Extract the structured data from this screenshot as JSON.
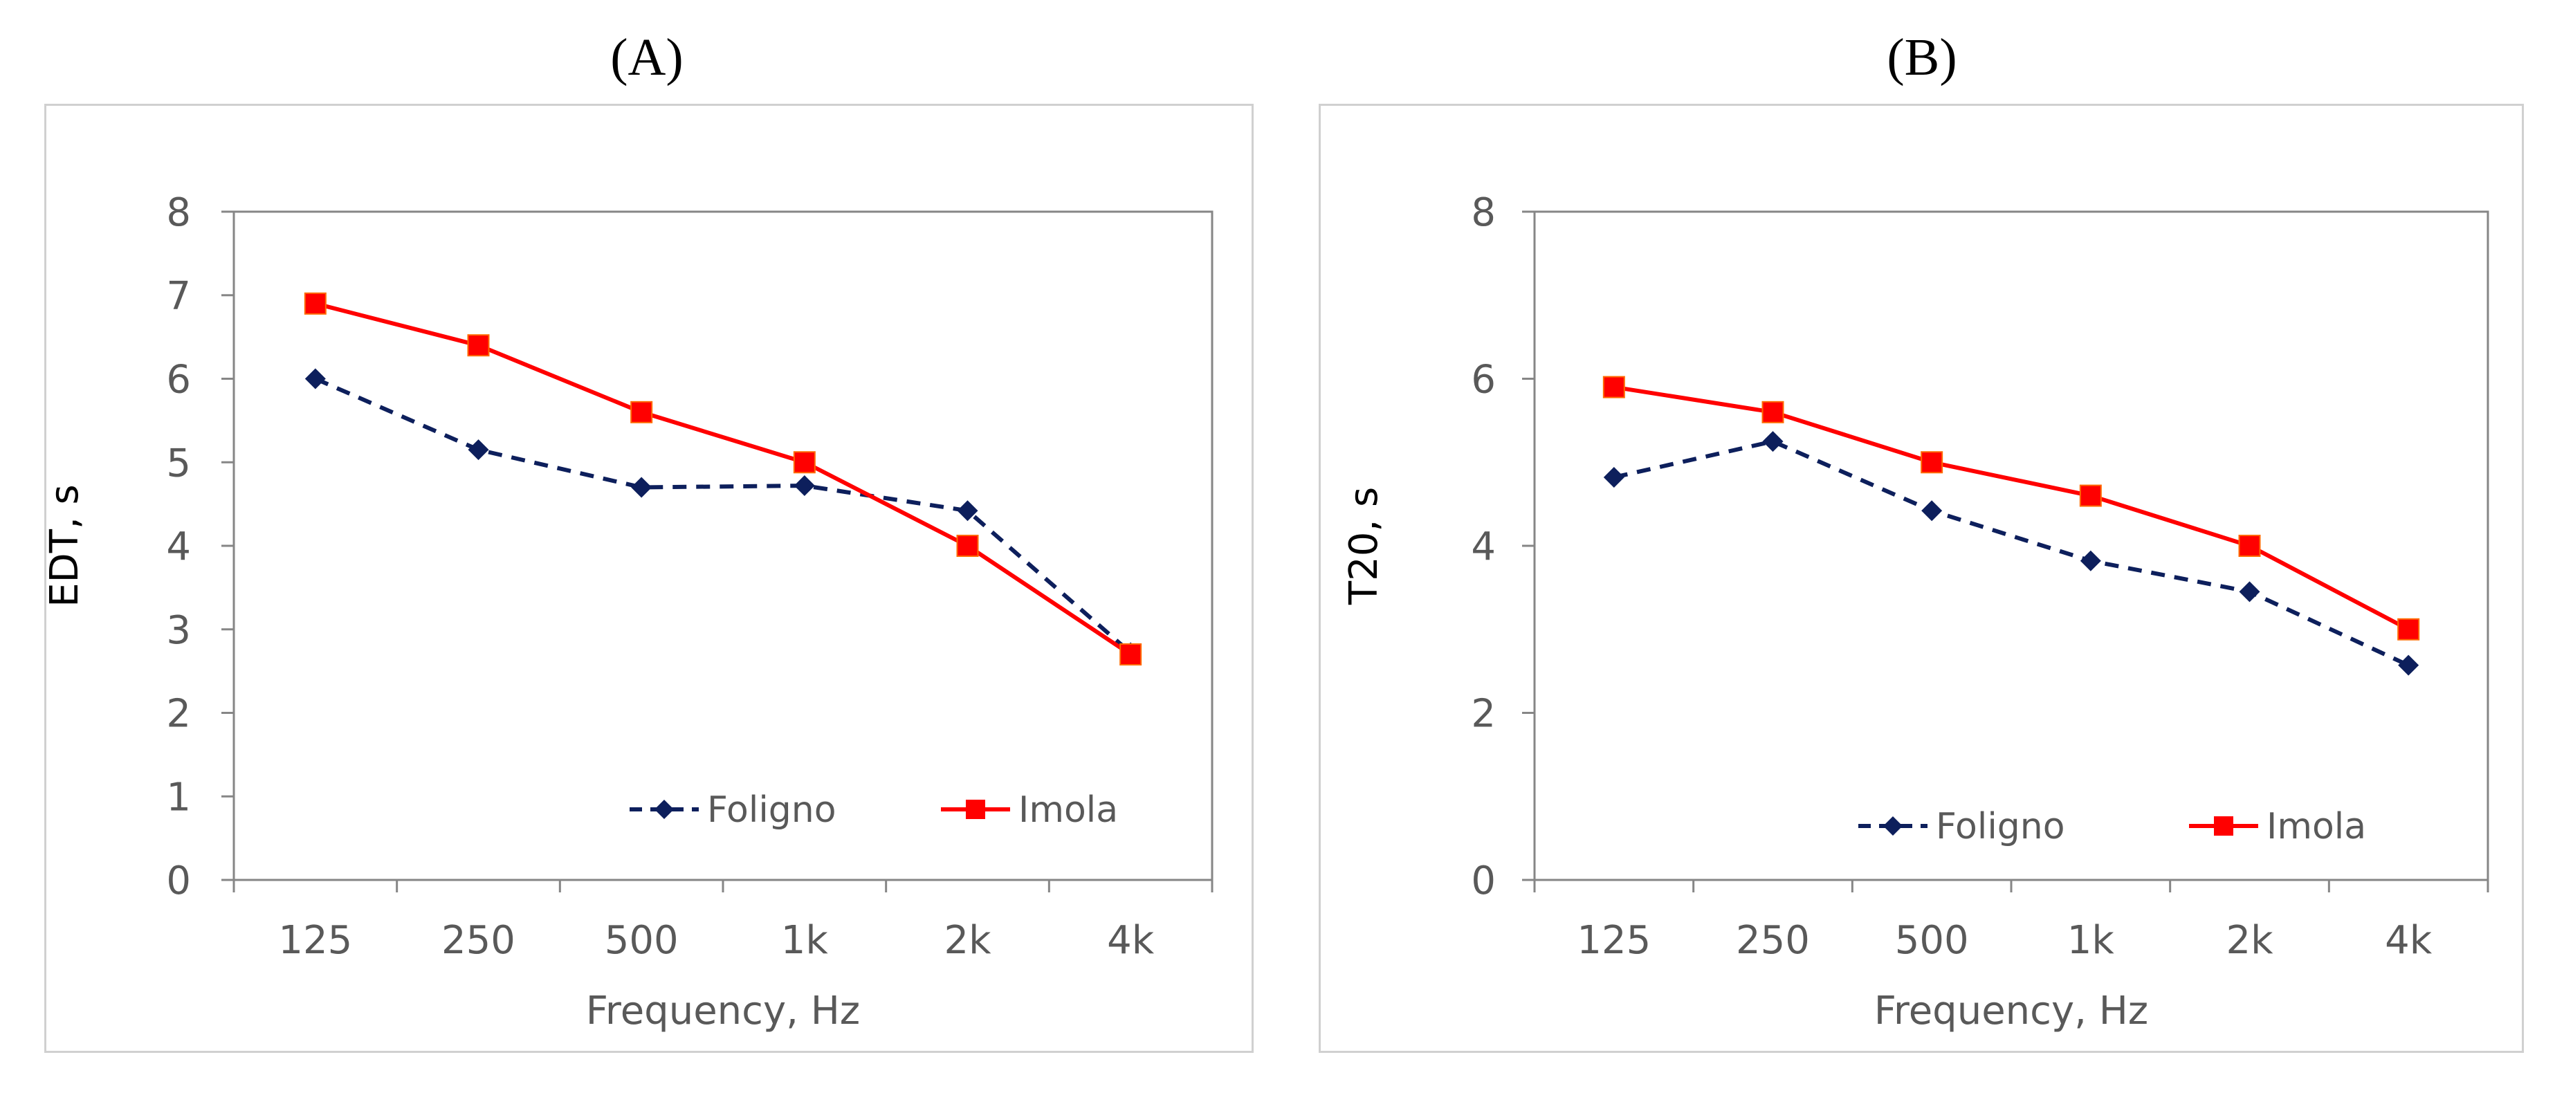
{
  "chart_data": [
    {
      "type": "line",
      "panel_label": "(A)",
      "xlabel": "Frequency, Hz",
      "ylabel": "EDT, s",
      "categories": [
        "125",
        "250",
        "500",
        "1k",
        "2k",
        "4k"
      ],
      "ylim": [
        0,
        8
      ],
      "yticks": [
        "0",
        "1",
        "2",
        "3",
        "4",
        "5",
        "6",
        "7",
        "8"
      ],
      "series": [
        {
          "name": "Foligno",
          "values": [
            6.0,
            5.15,
            4.7,
            4.72,
            4.42,
            2.72
          ],
          "color": "#0d1f5c",
          "style": "dashed",
          "marker": "diamond"
        },
        {
          "name": "Imola",
          "values": [
            6.9,
            6.4,
            5.6,
            5.0,
            4.0,
            2.7
          ],
          "color": "#ff0000",
          "style": "solid",
          "marker": "square"
        }
      ],
      "legend_position": "bottom-right"
    },
    {
      "type": "line",
      "panel_label": "(B)",
      "xlabel": "Frequency, Hz",
      "ylabel": "T20, s",
      "categories": [
        "125",
        "250",
        "500",
        "1k",
        "2k",
        "4k"
      ],
      "ylim": [
        0,
        8
      ],
      "yticks": [
        "0",
        "2",
        "4",
        "6",
        "8"
      ],
      "series": [
        {
          "name": "Foligno",
          "values": [
            4.82,
            5.25,
            4.42,
            3.82,
            3.45,
            2.57
          ],
          "color": "#0d1f5c",
          "style": "dashed",
          "marker": "diamond"
        },
        {
          "name": "Imola",
          "values": [
            5.9,
            5.6,
            5.0,
            4.6,
            4.0,
            3.0
          ],
          "color": "#ff0000",
          "style": "solid",
          "marker": "square"
        }
      ],
      "legend_position": "bottom-right"
    }
  ]
}
